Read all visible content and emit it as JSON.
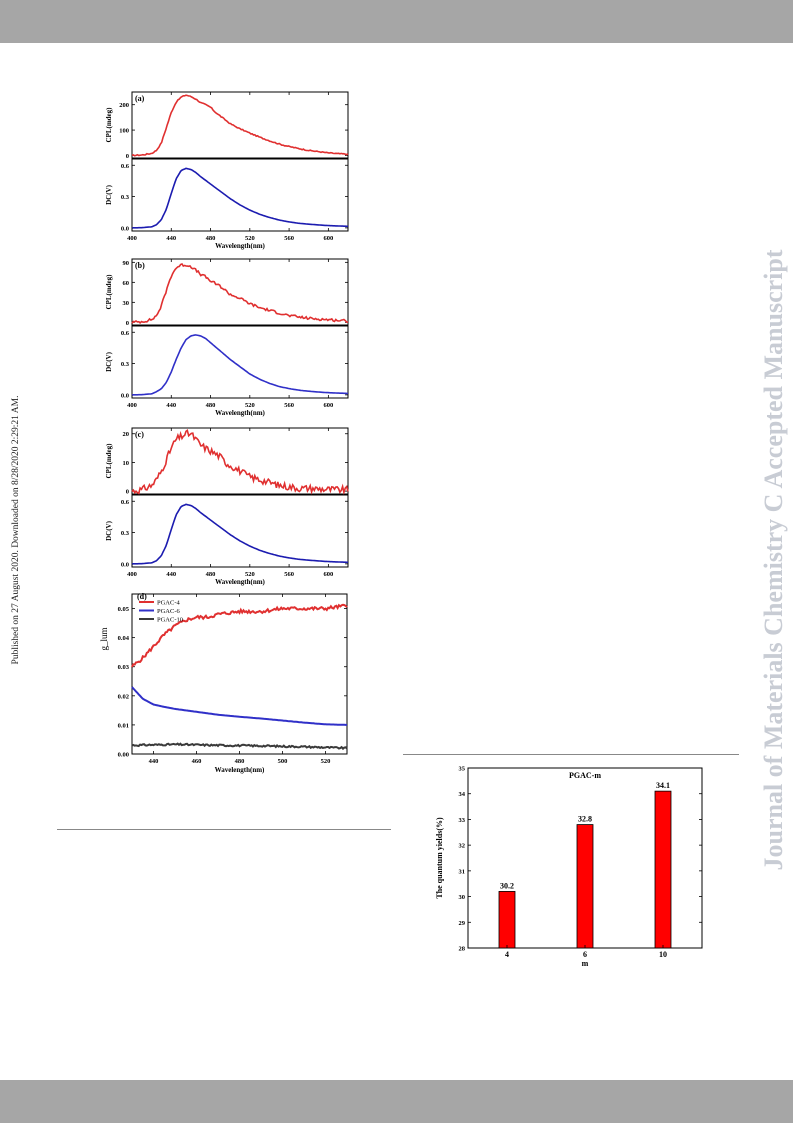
{
  "page": {
    "side_note": "Published on 27 August 2020. Downloaded on 8/28/2020 2:29:21 AM.",
    "watermark": "Journal of Materials Chemistry C Accepted Manuscript",
    "colors": {
      "band": "#a6a6a6",
      "watermark": "#c8ccd4"
    }
  },
  "chart_data": [
    {
      "id": "a",
      "type": "line",
      "panel_label": "(a)",
      "xlabel": "Wavelength(nm)",
      "x_ticks": [
        400,
        440,
        480,
        520,
        560,
        600
      ],
      "xlim": [
        400,
        620
      ],
      "top": {
        "ylabel": "CPL(mdeg)",
        "y_ticks": [
          0,
          100,
          200
        ],
        "ylim": [
          -10,
          250
        ],
        "color": "#e03030",
        "noise": 2,
        "x": [
          400,
          410,
          420,
          425,
          430,
          435,
          440,
          445,
          450,
          455,
          460,
          465,
          470,
          475,
          480,
          485,
          490,
          495,
          500,
          510,
          520,
          530,
          540,
          550,
          560,
          570,
          580,
          590,
          600,
          610,
          620
        ],
        "y": [
          0,
          2,
          8,
          20,
          50,
          110,
          170,
          210,
          230,
          238,
          232,
          222,
          208,
          200,
          190,
          170,
          155,
          140,
          125,
          105,
          88,
          72,
          58,
          45,
          35,
          27,
          20,
          15,
          10,
          7,
          5
        ]
      },
      "bottom": {
        "ylabel": "DC(V)",
        "y_ticks": [
          0.0,
          0.3,
          0.6
        ],
        "ylim": [
          -0.03,
          0.66
        ],
        "color": "#1c1cb0",
        "noise": 0,
        "x": [
          400,
          410,
          420,
          425,
          430,
          435,
          440,
          445,
          450,
          455,
          460,
          465,
          470,
          480,
          490,
          500,
          510,
          520,
          530,
          540,
          550,
          560,
          570,
          580,
          590,
          600,
          610,
          620
        ],
        "y": [
          0.0,
          0.002,
          0.01,
          0.03,
          0.08,
          0.18,
          0.33,
          0.47,
          0.55,
          0.57,
          0.56,
          0.53,
          0.49,
          0.42,
          0.35,
          0.28,
          0.22,
          0.17,
          0.13,
          0.1,
          0.075,
          0.057,
          0.044,
          0.035,
          0.028,
          0.022,
          0.018,
          0.015
        ]
      }
    },
    {
      "id": "b",
      "type": "line",
      "panel_label": "(b)",
      "xlabel": "Wavelength(nm)",
      "x_ticks": [
        400,
        440,
        480,
        520,
        560,
        600
      ],
      "xlim": [
        400,
        620
      ],
      "top": {
        "ylabel": "CPL(mdeg)",
        "y_ticks": [
          0,
          30,
          60,
          90
        ],
        "ylim": [
          -4,
          95
        ],
        "color": "#e03030",
        "noise": 2,
        "x": [
          400,
          410,
          420,
          425,
          430,
          435,
          440,
          445,
          450,
          455,
          460,
          465,
          470,
          475,
          480,
          485,
          490,
          495,
          500,
          510,
          520,
          530,
          540,
          550,
          560,
          570,
          580,
          590,
          600,
          610,
          620
        ],
        "y": [
          0,
          1,
          4,
          10,
          25,
          48,
          70,
          82,
          86,
          86,
          84,
          78,
          72,
          68,
          62,
          58,
          54,
          48,
          42,
          36,
          28,
          22,
          18,
          14,
          10,
          8,
          6,
          5,
          4,
          3,
          2
        ]
      },
      "bottom": {
        "ylabel": "DC(V)",
        "y_ticks": [
          0.0,
          0.3,
          0.6
        ],
        "ylim": [
          -0.03,
          0.66
        ],
        "color": "#3030c8",
        "noise": 0,
        "x": [
          400,
          410,
          420,
          425,
          430,
          435,
          440,
          445,
          450,
          455,
          460,
          465,
          470,
          475,
          480,
          490,
          500,
          510,
          520,
          530,
          540,
          550,
          560,
          570,
          580,
          590,
          600,
          610,
          620
        ],
        "y": [
          0.0,
          0.002,
          0.01,
          0.03,
          0.06,
          0.12,
          0.22,
          0.34,
          0.45,
          0.53,
          0.565,
          0.575,
          0.565,
          0.54,
          0.5,
          0.42,
          0.34,
          0.27,
          0.2,
          0.15,
          0.11,
          0.08,
          0.06,
          0.045,
          0.035,
          0.027,
          0.021,
          0.017,
          0.014
        ]
      }
    },
    {
      "id": "c",
      "type": "line",
      "panel_label": "(c)",
      "xlabel": "Wavelength(nm)",
      "x_ticks": [
        400,
        440,
        480,
        520,
        560,
        600
      ],
      "xlim": [
        400,
        620
      ],
      "top": {
        "ylabel": "CPL(mdeg)",
        "y_ticks": [
          0,
          10,
          20
        ],
        "ylim": [
          -1,
          22
        ],
        "color": "#e03030",
        "noise": 1.2,
        "x": [
          400,
          410,
          420,
          425,
          430,
          435,
          440,
          445,
          450,
          455,
          460,
          465,
          470,
          475,
          480,
          485,
          490,
          495,
          500,
          510,
          520,
          530,
          540,
          550,
          560,
          570,
          580,
          590,
          600,
          610,
          620
        ],
        "y": [
          0,
          0.5,
          2,
          4,
          7,
          11,
          15,
          18,
          19,
          20,
          20,
          18,
          16,
          15,
          14,
          13,
          12,
          10,
          9,
          7,
          5,
          4,
          3,
          2,
          1.5,
          1,
          1,
          0.8,
          0.6,
          0.5,
          0.4
        ]
      },
      "bottom": {
        "ylabel": "DC(V)",
        "y_ticks": [
          0.0,
          0.3,
          0.6
        ],
        "ylim": [
          -0.03,
          0.66
        ],
        "color": "#1c1cb0",
        "noise": 0,
        "x": [
          400,
          410,
          420,
          425,
          430,
          435,
          440,
          445,
          450,
          455,
          460,
          465,
          470,
          480,
          490,
          500,
          510,
          520,
          530,
          540,
          550,
          560,
          570,
          580,
          590,
          600,
          610,
          620
        ],
        "y": [
          0.0,
          0.002,
          0.01,
          0.03,
          0.08,
          0.18,
          0.33,
          0.47,
          0.55,
          0.57,
          0.56,
          0.53,
          0.49,
          0.42,
          0.35,
          0.28,
          0.22,
          0.17,
          0.13,
          0.1,
          0.075,
          0.057,
          0.044,
          0.035,
          0.028,
          0.022,
          0.018,
          0.015
        ]
      }
    },
    {
      "id": "d",
      "type": "line",
      "panel_label": "(d)",
      "xlabel": "Wavelength(nm)",
      "ylabel": "g_lum",
      "x_ticks": [
        440,
        460,
        480,
        500,
        520
      ],
      "y_ticks": [
        0.0,
        0.01,
        0.02,
        0.03,
        0.04,
        0.05
      ],
      "xlim": [
        430,
        530
      ],
      "ylim": [
        0,
        0.055
      ],
      "legend": "top-left",
      "series": [
        {
          "name": "PGAC-4",
          "color": "#e03030",
          "noise": 0.0006,
          "x": [
            430,
            435,
            440,
            445,
            450,
            455,
            460,
            465,
            470,
            480,
            490,
            500,
            510,
            520,
            530
          ],
          "y": [
            0.03,
            0.033,
            0.037,
            0.041,
            0.044,
            0.046,
            0.047,
            0.047,
            0.048,
            0.049,
            0.049,
            0.05,
            0.05,
            0.05,
            0.051
          ]
        },
        {
          "name": "PGAC-6",
          "color": "#3030c8",
          "noise": 0,
          "x": [
            430,
            435,
            440,
            445,
            450,
            455,
            460,
            470,
            480,
            490,
            500,
            510,
            520,
            530
          ],
          "y": [
            0.023,
            0.019,
            0.017,
            0.0162,
            0.0155,
            0.015,
            0.0145,
            0.0135,
            0.0128,
            0.0122,
            0.0115,
            0.0108,
            0.0102,
            0.01
          ]
        },
        {
          "name": "PGAC-10",
          "color": "#3a3a3a",
          "noise": 0.0003,
          "x": [
            430,
            450,
            470,
            490,
            510,
            530
          ],
          "y": [
            0.003,
            0.0033,
            0.003,
            0.0028,
            0.0025,
            0.002
          ]
        }
      ]
    },
    {
      "id": "e",
      "type": "bar",
      "title": "PGAC-m",
      "xlabel": "m",
      "ylabel": "The quantum yields(%)",
      "categories": [
        "4",
        "6",
        "10"
      ],
      "values": [
        30.2,
        32.8,
        34.1
      ],
      "data_labels": [
        "30.2",
        "32.8",
        "34.1"
      ],
      "y_ticks": [
        28,
        29,
        30,
        31,
        32,
        33,
        34,
        35
      ],
      "ylim": [
        28,
        35
      ],
      "color": "#ff0000"
    }
  ]
}
